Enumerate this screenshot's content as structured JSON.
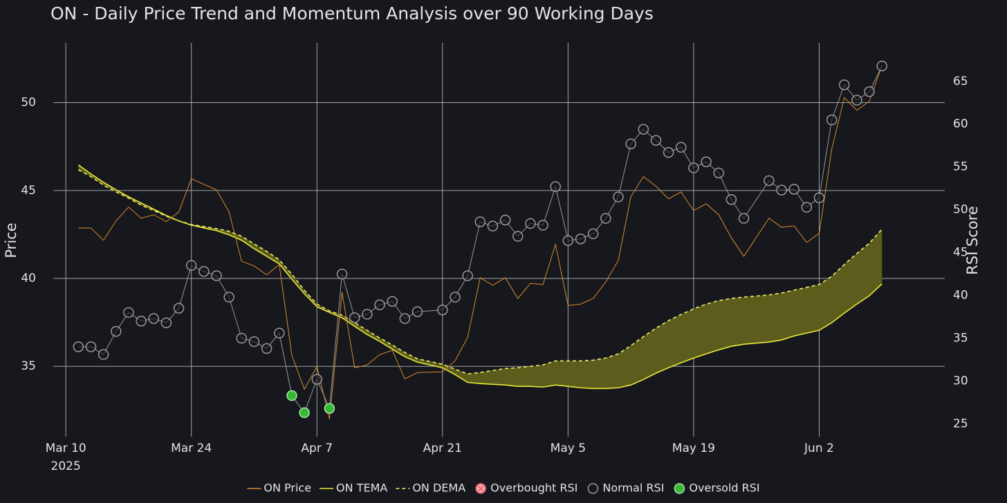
{
  "chart_data": {
    "type": "line",
    "title": "ON - Daily Price Trend and Momentum Analysis over 90 Working Days",
    "y_label": "Price",
    "y2_label": "RSI Score",
    "x": [
      "2025-03-11",
      "2025-03-12",
      "2025-03-13",
      "2025-03-14",
      "2025-03-17",
      "2025-03-18",
      "2025-03-19",
      "2025-03-20",
      "2025-03-21",
      "2025-03-24",
      "2025-03-25",
      "2025-03-26",
      "2025-03-27",
      "2025-03-28",
      "2025-03-31",
      "2025-04-01",
      "2025-04-02",
      "2025-04-03",
      "2025-04-04",
      "2025-04-07",
      "2025-04-08",
      "2025-04-09",
      "2025-04-10",
      "2025-04-11",
      "2025-04-14",
      "2025-04-15",
      "2025-04-16",
      "2025-04-17",
      "2025-04-21",
      "2025-04-22",
      "2025-04-23",
      "2025-04-24",
      "2025-04-25",
      "2025-04-28",
      "2025-04-29",
      "2025-04-30",
      "2025-05-01",
      "2025-05-02",
      "2025-05-05",
      "2025-05-06",
      "2025-05-07",
      "2025-05-08",
      "2025-05-09",
      "2025-05-12",
      "2025-05-13",
      "2025-05-14",
      "2025-05-15",
      "2025-05-16",
      "2025-05-19",
      "2025-05-20",
      "2025-05-21",
      "2025-05-22",
      "2025-05-23",
      "2025-05-27",
      "2025-05-28",
      "2025-05-29",
      "2025-05-30",
      "2025-06-02",
      "2025-06-03",
      "2025-06-04",
      "2025-06-05",
      "2025-06-06",
      "2025-06-09"
    ],
    "xlim": [
      "2025-03-07",
      "2025-06-16"
    ],
    "xticks": [
      {
        "value": "2025-03-10",
        "label": "Mar 10",
        "sublabel": "2025"
      },
      {
        "value": "2025-03-24",
        "label": "Mar 24"
      },
      {
        "value": "2025-04-07",
        "label": "Apr 7"
      },
      {
        "value": "2025-04-21",
        "label": "Apr 21"
      },
      {
        "value": "2025-05-05",
        "label": "May 5"
      },
      {
        "value": "2025-05-19",
        "label": "May 19"
      },
      {
        "value": "2025-06-02",
        "label": "Jun 2"
      }
    ],
    "ylim": [
      31,
      53.4
    ],
    "yticks": [
      35,
      40,
      45,
      50
    ],
    "y2lim": [
      23.5,
      69.5
    ],
    "y2ticks": [
      25,
      30,
      35,
      40,
      45,
      50,
      55,
      60,
      65
    ],
    "grid": true,
    "legend": "bottom",
    "series": [
      {
        "name": "ON Price",
        "color": "#d98c2e",
        "values": [
          42.87,
          42.87,
          42.17,
          43.27,
          44.06,
          43.43,
          43.62,
          43.23,
          43.78,
          45.67,
          45.35,
          45.04,
          43.78,
          40.98,
          40.71,
          40.2,
          40.79,
          35.63,
          33.7,
          35.0,
          32.0,
          39.21,
          34.92,
          35.08,
          35.67,
          35.91,
          34.29,
          34.65,
          34.69,
          35.31,
          36.65,
          40.04,
          39.61,
          40.04,
          38.86,
          39.72,
          39.65,
          41.93,
          38.46,
          38.54,
          38.86,
          39.8,
          41.02,
          44.65,
          45.79,
          45.24,
          44.53,
          44.92,
          43.86,
          44.25,
          43.62,
          42.32,
          41.26,
          43.43,
          42.91,
          42.99,
          42.05,
          42.56,
          47.36,
          50.28,
          49.57,
          50.08,
          52.13
        ]
      },
      {
        "name": "ON TEMA",
        "color": "#e8e83a",
        "values": [
          46.46,
          45.94,
          45.47,
          45.04,
          44.65,
          44.29,
          43.94,
          43.58,
          43.27,
          43.03,
          42.87,
          42.72,
          42.48,
          42.17,
          41.69,
          41.26,
          40.83,
          39.96,
          39.13,
          38.39,
          38.07,
          37.76,
          37.28,
          36.81,
          36.42,
          35.98,
          35.55,
          35.24,
          34.92,
          34.53,
          34.09,
          34.02,
          33.98,
          33.94,
          33.86,
          33.86,
          33.82,
          33.94,
          33.86,
          33.78,
          33.74,
          33.74,
          33.78,
          33.94,
          34.25,
          34.61,
          34.92,
          35.2,
          35.47,
          35.71,
          35.94,
          36.14,
          36.26,
          36.38,
          36.5,
          36.73,
          36.89,
          37.05,
          37.48,
          38.03,
          38.54,
          39.02,
          39.69
        ]
      },
      {
        "name": "ON DEMA",
        "color": "#f0f06a",
        "dash": true,
        "fill_color": "#5c5d1c",
        "values": [
          46.18,
          45.79,
          45.31,
          44.92,
          44.57,
          44.17,
          43.86,
          43.54,
          43.27,
          43.07,
          42.95,
          42.83,
          42.68,
          42.4,
          41.97,
          41.54,
          41.06,
          40.24,
          39.33,
          38.54,
          38.15,
          37.91,
          37.48,
          37.05,
          36.61,
          36.22,
          35.79,
          35.43,
          35.12,
          34.84,
          34.57,
          34.65,
          34.76,
          34.88,
          34.92,
          35.0,
          35.08,
          35.31,
          35.31,
          35.31,
          35.35,
          35.47,
          35.71,
          36.18,
          36.69,
          37.17,
          37.6,
          37.95,
          38.27,
          38.54,
          38.74,
          38.86,
          38.94,
          39.06,
          39.17,
          39.33,
          39.49,
          39.65,
          40.12,
          40.79,
          41.42,
          42.01,
          42.8
        ]
      },
      {
        "name": "Overbought RSI",
        "color": "#f2a4aa",
        "marker": "circle-x",
        "axis": "y2",
        "values": [
          null,
          null,
          null,
          null,
          null,
          null,
          null,
          null,
          null,
          null,
          null,
          null,
          null,
          null,
          null,
          null,
          null,
          null,
          null,
          null,
          null,
          null,
          null,
          null,
          null,
          null,
          null,
          null,
          null,
          null,
          null,
          null,
          null,
          null,
          null,
          null,
          null,
          null,
          null,
          null,
          null,
          null,
          null,
          null,
          null,
          null,
          null,
          null,
          null,
          null,
          null,
          null,
          null,
          null,
          null,
          null,
          null,
          null,
          null,
          null,
          null,
          null,
          null
        ]
      },
      {
        "name": "Normal RSI",
        "color": "#9a9a9a",
        "marker": "circle-open",
        "axis": "y2",
        "values": [
          34.0,
          34.0,
          33.1,
          35.8,
          38.0,
          37.0,
          37.3,
          36.8,
          38.5,
          43.5,
          42.8,
          42.3,
          39.8,
          35.0,
          34.6,
          33.8,
          35.6,
          null,
          null,
          30.2,
          null,
          42.5,
          37.4,
          37.8,
          38.9,
          39.3,
          37.3,
          38.1,
          38.3,
          39.8,
          42.3,
          48.6,
          48.1,
          48.8,
          46.9,
          48.4,
          48.2,
          52.7,
          46.4,
          46.6,
          47.2,
          49.0,
          51.5,
          57.7,
          59.4,
          58.1,
          56.7,
          57.3,
          54.9,
          55.6,
          54.3,
          51.2,
          49.0,
          53.4,
          52.3,
          52.4,
          50.3,
          51.4,
          60.5,
          64.6,
          62.8,
          63.8,
          66.8
        ]
      },
      {
        "name": "Oversold RSI",
        "color": "#37b837",
        "marker": "circle",
        "axis": "y2",
        "values": [
          null,
          null,
          null,
          null,
          null,
          null,
          null,
          null,
          null,
          null,
          null,
          null,
          null,
          null,
          null,
          null,
          null,
          28.3,
          26.3,
          null,
          26.8,
          null,
          null,
          null,
          null,
          null,
          null,
          null,
          null,
          null,
          null,
          null,
          null,
          null,
          null,
          null,
          null,
          null,
          null,
          null,
          null,
          null,
          null,
          null,
          null,
          null,
          null,
          null,
          null,
          null,
          null,
          null,
          null,
          null,
          null,
          null,
          null,
          null,
          null,
          null,
          null,
          null,
          null
        ]
      }
    ]
  }
}
